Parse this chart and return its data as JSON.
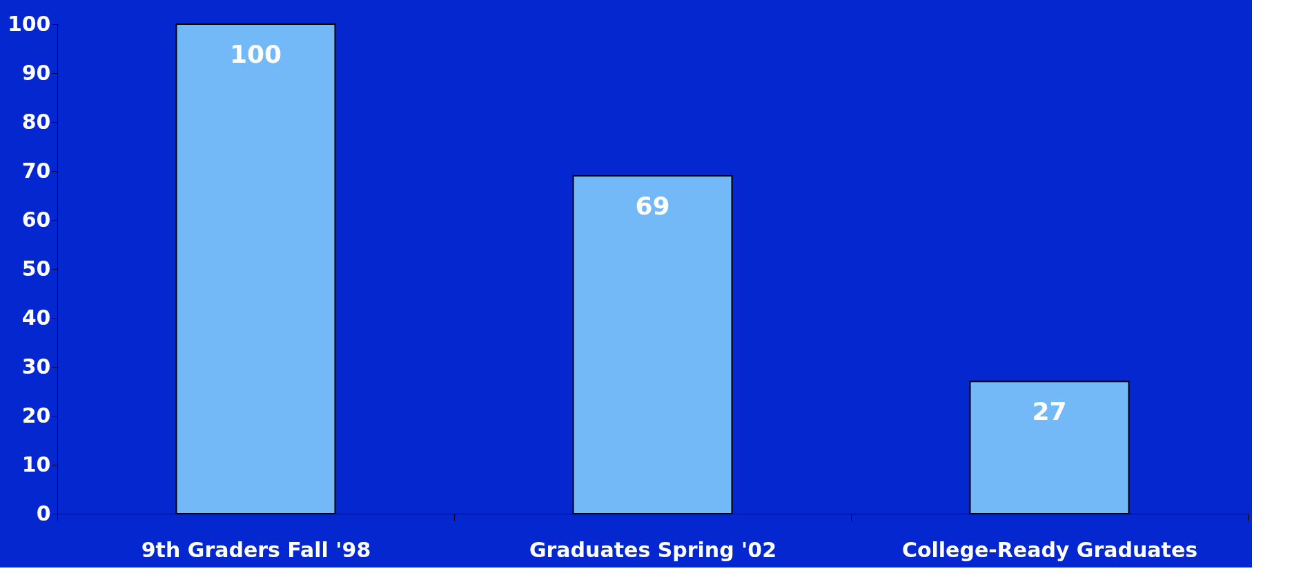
{
  "chart_data": {
    "type": "bar",
    "categories": [
      "9th Graders Fall '98",
      "Graduates Spring '02",
      "College-Ready Graduates"
    ],
    "values": [
      100,
      69,
      27
    ],
    "color": "#73b9f8",
    "ylim": [
      0,
      100
    ],
    "yticks": [
      0,
      10,
      20,
      30,
      40,
      50,
      60,
      70,
      80,
      90,
      100
    ],
    "grid": false,
    "data_labels": true
  }
}
